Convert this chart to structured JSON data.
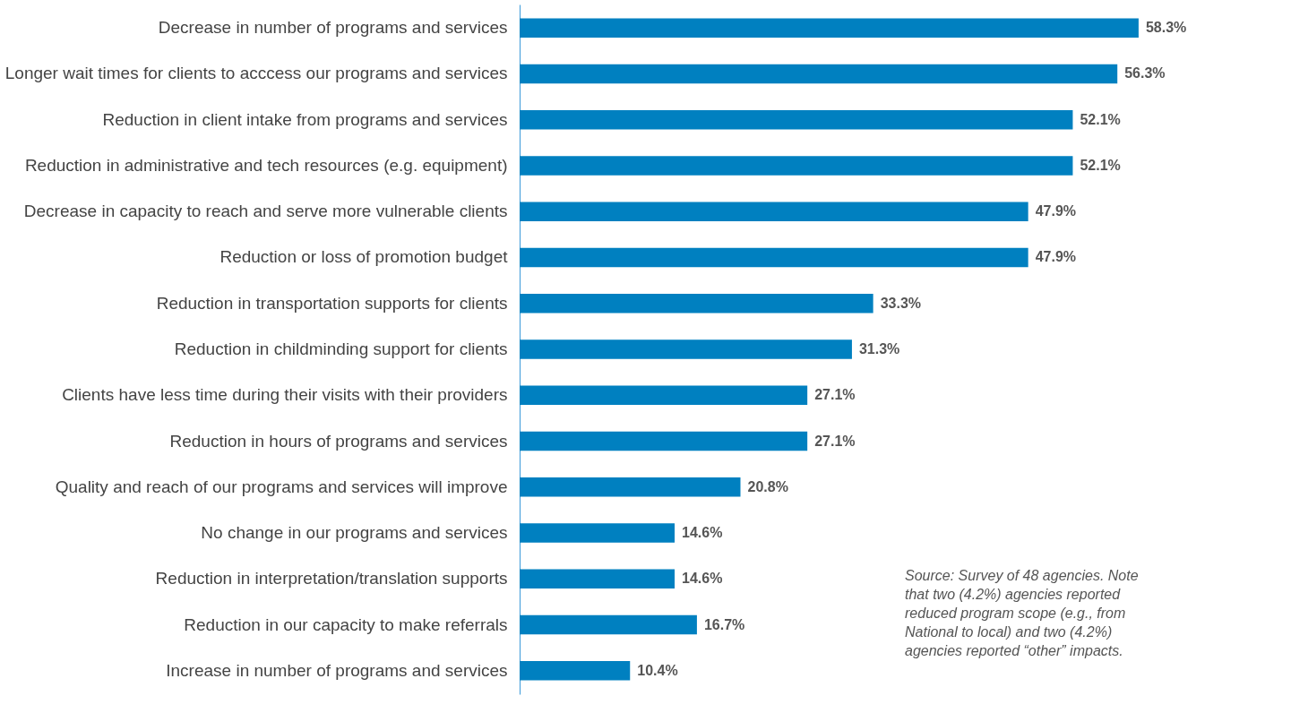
{
  "chart_data": {
    "type": "bar",
    "orientation": "horizontal",
    "tick_labels": "y",
    "categories": [
      "Decrease in number of programs and services",
      "Longer wait times for clients to acccess our programs and services",
      "Reduction in client intake from programs and services",
      "Reduction in administrative and tech resources (e.g. equipment)",
      "Decrease in capacity to reach and serve more vulnerable clients",
      "Reduction or loss of promotion budget",
      "Reduction in transportation supports for clients",
      "Reduction in childminding support for clients",
      "Clients have less time during their visits with their providers",
      "Reduction in hours of programs and services",
      "Quality and reach of our programs and services will improve",
      "No change in our programs and services",
      "Reduction in interpretation/translation supports",
      "Reduction in our capacity to make referrals",
      "Increase in number of programs and services"
    ],
    "values": [
      58.3,
      56.3,
      52.1,
      52.1,
      47.9,
      47.9,
      33.3,
      31.3,
      27.1,
      27.1,
      20.8,
      14.6,
      14.6,
      16.7,
      10.4
    ],
    "value_labels": [
      "58.3%",
      "56.3%",
      "52.1%",
      "52.1%",
      "47.9%",
      "47.9%",
      "33.3%",
      "31.3%",
      "27.1%",
      "27.1%",
      "20.8%",
      "14.6%",
      "14.6%",
      "16.7%",
      "10.4%"
    ],
    "color": "#0080c0",
    "annotations": [
      "Source: Survey of 48 agencies. Note that two (4.2%) agencies reported reduced program scope (e.g., from National to local) and two (4.2%) agencies reported “other” impacts."
    ]
  }
}
